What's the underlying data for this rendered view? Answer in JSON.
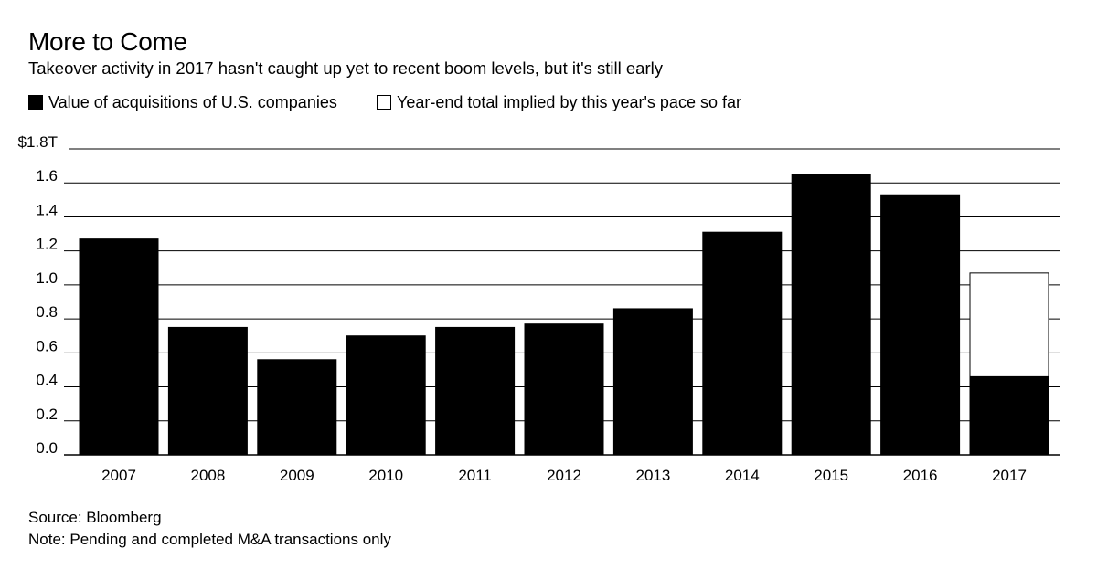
{
  "header": {
    "title": "More to Come",
    "subtitle": "Takeover activity in 2017 hasn't caught up yet to recent boom levels, but it's still early"
  },
  "legend": {
    "items": [
      {
        "label": "Value of acquisitions of U.S. companies",
        "color": "#000000"
      },
      {
        "label": "Year-end total implied by this year's pace so far",
        "color": "#ffffff"
      }
    ]
  },
  "chart_data": {
    "type": "bar",
    "stacked": true,
    "title": "More to Come",
    "subtitle": "Takeover activity in 2017 hasn't caught up yet to recent boom levels, but it's still early",
    "categories": [
      "2007",
      "2008",
      "2009",
      "2010",
      "2011",
      "2012",
      "2013",
      "2014",
      "2015",
      "2016",
      "2017"
    ],
    "series": [
      {
        "name": "Value of acquisitions of U.S. companies",
        "color": "#000000",
        "values": [
          1.27,
          0.75,
          0.56,
          0.7,
          0.75,
          0.77,
          0.86,
          1.31,
          1.65,
          1.53,
          0.46
        ]
      },
      {
        "name": "Year-end total implied by this year's pace so far",
        "color": "#ffffff",
        "values": [
          0,
          0,
          0,
          0,
          0,
          0,
          0,
          0,
          0,
          0,
          0.61
        ]
      }
    ],
    "ylim": [
      0,
      1.8
    ],
    "yticks": [
      0.0,
      0.2,
      0.4,
      0.6,
      0.8,
      1.0,
      1.2,
      1.4,
      1.6,
      1.8
    ],
    "ytick_labels": [
      "0.0",
      "0.2",
      "0.4",
      "0.6",
      "0.8",
      "1.0",
      "1.2",
      "1.4",
      "1.6",
      "$1.8T"
    ],
    "xlabel": "",
    "ylabel": "",
    "grid": true,
    "legend_position": "top-left"
  },
  "footer": {
    "source": "Source: Bloomberg",
    "note": "Note: Pending and completed M&A transactions only"
  }
}
